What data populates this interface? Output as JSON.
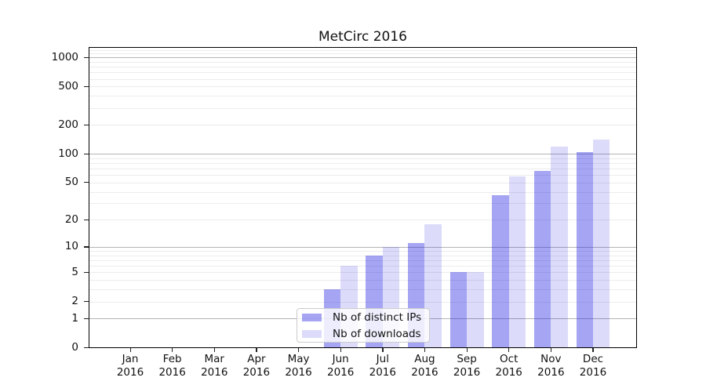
{
  "chart_data": {
    "type": "bar",
    "title": "MetCirc 2016",
    "categories": [
      "Jan 2016",
      "Feb 2016",
      "Mar 2016",
      "Apr 2016",
      "May 2016",
      "Jun 2016",
      "Jul 2016",
      "Aug 2016",
      "Sep 2016",
      "Oct 2016",
      "Nov 2016",
      "Dec 2016"
    ],
    "series": [
      {
        "name": "Nb of distinct IPs",
        "color": "rgba(30,30,225,0.40)",
        "values": [
          0,
          0,
          0,
          0,
          0,
          3,
          8,
          11,
          5,
          37,
          66,
          105
        ]
      },
      {
        "name": "Nb of downloads",
        "color": "rgba(20,20,220,0.15)",
        "values": [
          0,
          0,
          0,
          0,
          0,
          6,
          10,
          18,
          5,
          58,
          118,
          141
        ]
      }
    ],
    "xlabel": "",
    "ylabel": "",
    "yscale": "log1p",
    "ylim": [
      0,
      1300
    ],
    "yticks": [
      0,
      1,
      2,
      5,
      10,
      20,
      50,
      100,
      200,
      500,
      1000
    ],
    "grid": {
      "major_at": [
        1,
        10,
        100,
        1000
      ],
      "minor_at": [
        2,
        3,
        4,
        5,
        6,
        7,
        8,
        9,
        20,
        30,
        40,
        50,
        60,
        70,
        80,
        90,
        200,
        300,
        400,
        500,
        600,
        700,
        800,
        900,
        1100,
        1200,
        1300
      ],
      "major_color": "#b4b4b4",
      "minor_color": "#ececec"
    },
    "legend_position": "lower-center"
  }
}
